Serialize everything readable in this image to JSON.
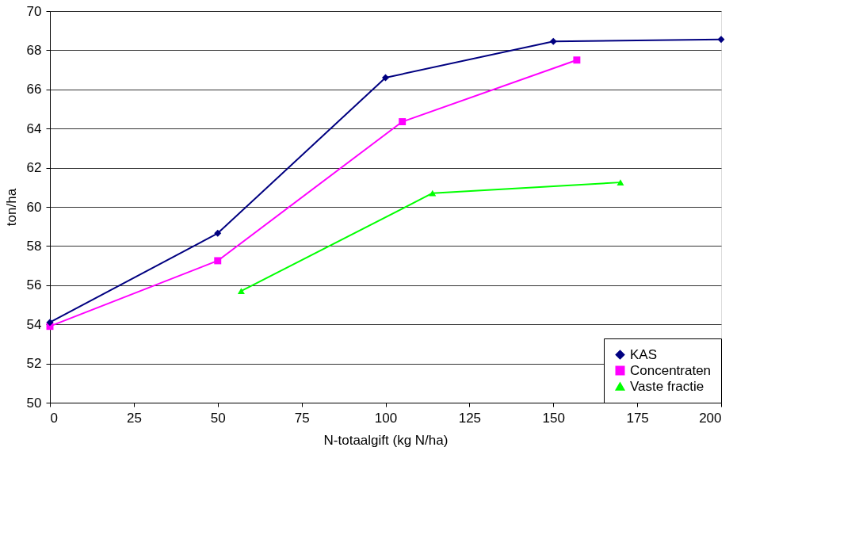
{
  "chart_data": {
    "type": "line",
    "xlabel": "N-totaalgift (kg N/ha)",
    "ylabel": "ton/ha",
    "xlim": [
      0,
      200
    ],
    "xticks": [
      0,
      25,
      50,
      75,
      100,
      125,
      150,
      175,
      200
    ],
    "ylim": [
      50,
      70
    ],
    "yticks": [
      50,
      52,
      54,
      56,
      58,
      60,
      62,
      64,
      66,
      68,
      70
    ],
    "grid": "y",
    "legend": "bottom right",
    "series": [
      {
        "name": "KAS",
        "color": "#000080",
        "marker": "diamond",
        "x": [
          0,
          50,
          100,
          150,
          200
        ],
        "values": [
          54.1,
          58.65,
          66.6,
          68.45,
          68.55
        ]
      },
      {
        "name": "Concentraten",
        "color": "#ff00ff",
        "marker": "square",
        "x": [
          0,
          50,
          105,
          157
        ],
        "values": [
          53.9,
          57.25,
          64.35,
          67.5
        ]
      },
      {
        "name": "Vaste fractie",
        "color": "#00ff00",
        "marker": "triangle",
        "x": [
          57,
          114,
          170
        ],
        "values": [
          55.7,
          60.7,
          61.25
        ]
      }
    ]
  }
}
